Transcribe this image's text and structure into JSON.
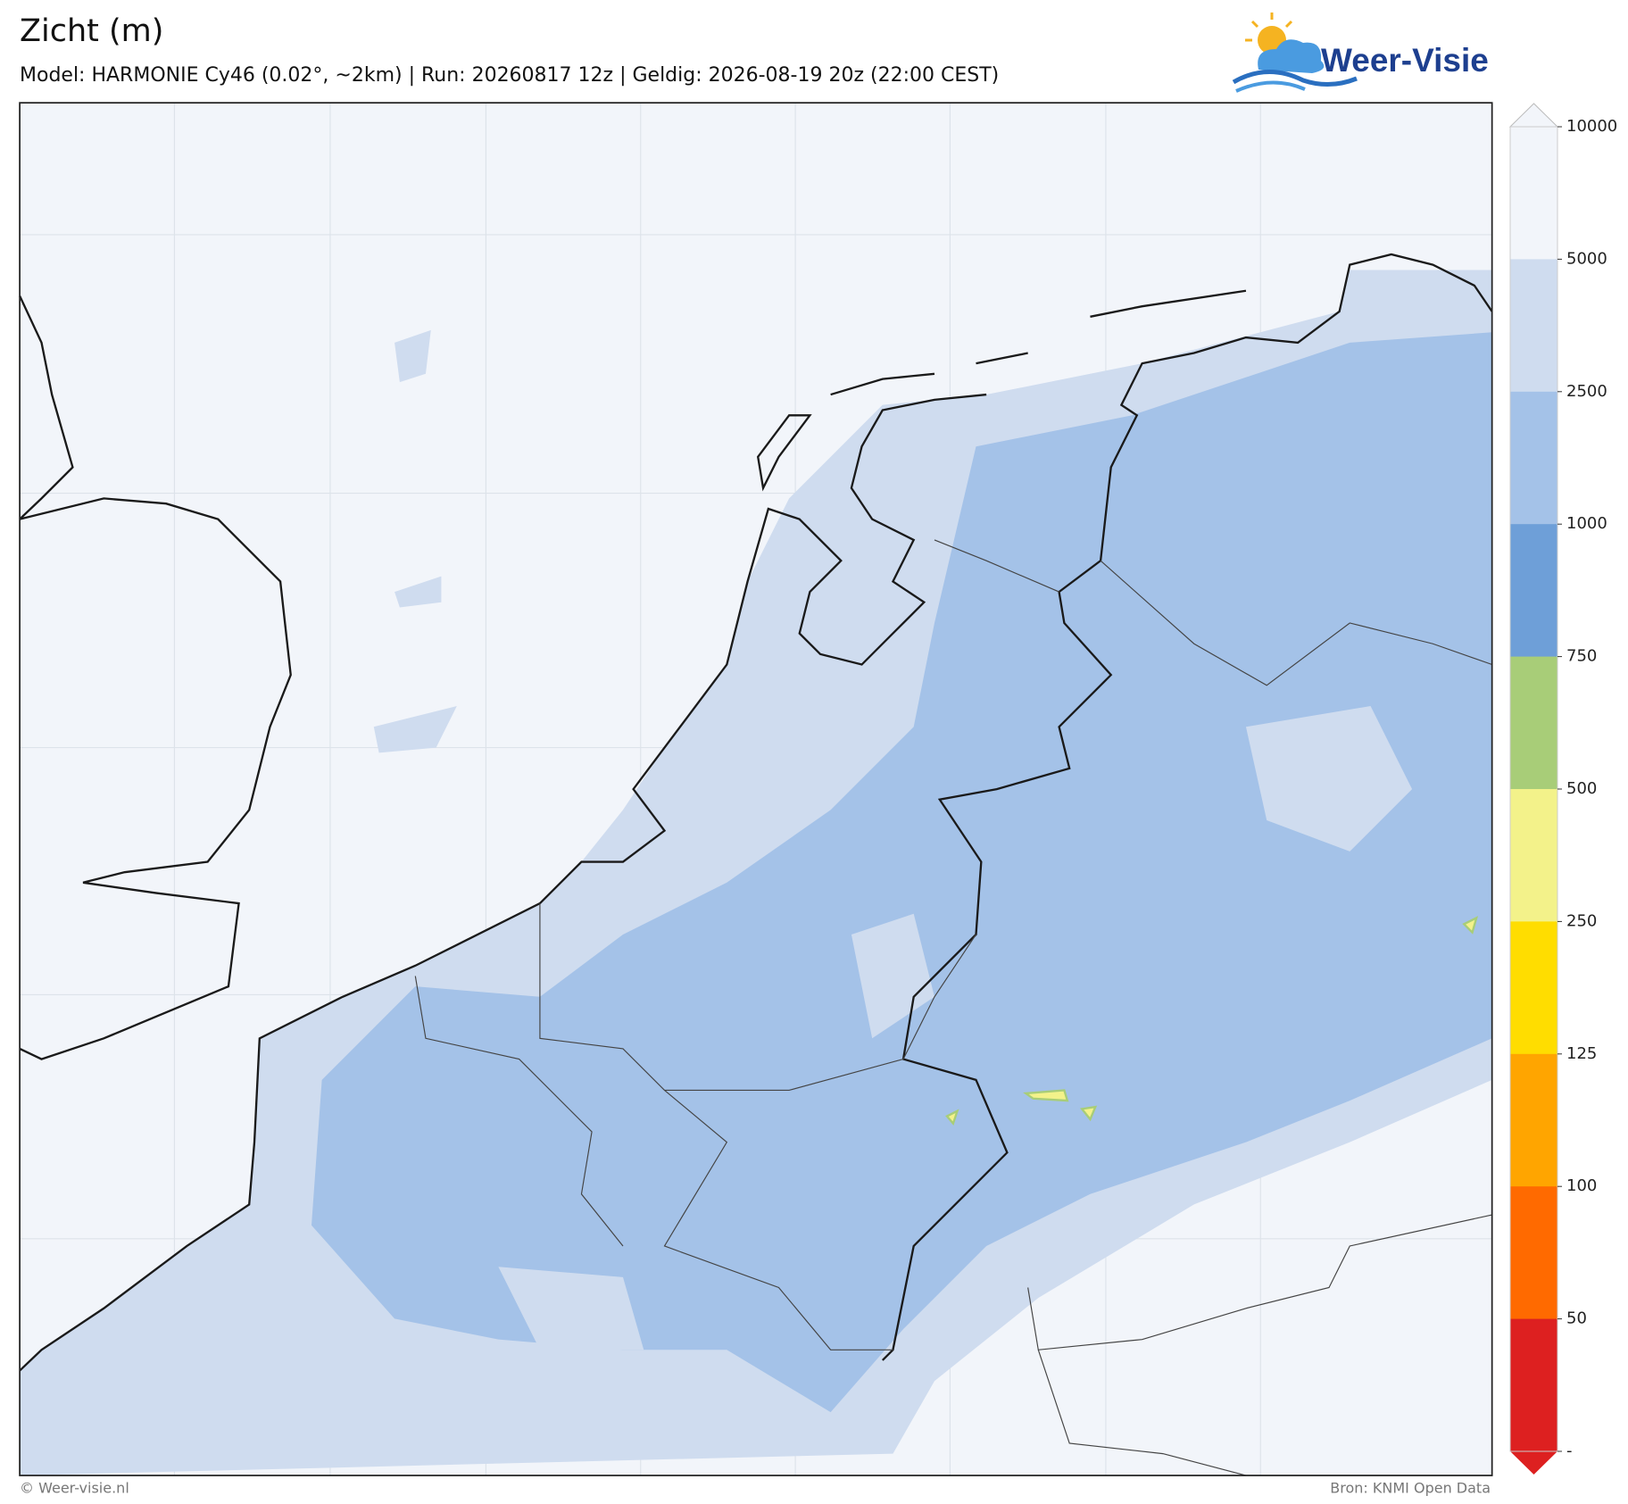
{
  "header": {
    "title": "Zicht (m)",
    "subtitle": "Model: HARMONIE Cy46 (0.02°, ~2km)  |  Run: 20260817 12z  |  Geldig: 2026-08-19 20z (22:00 CEST)"
  },
  "logo": {
    "text": "Weer-Visie"
  },
  "legend": {
    "labels": [
      "10000",
      "5000",
      "2500",
      "1000",
      "750",
      "500",
      "250",
      "125",
      "100",
      "50",
      "-"
    ],
    "colors": [
      "#f2f5fa",
      "#cfdcef",
      "#a4c2e8",
      "#6e9fd8",
      "#a8cd78",
      "#f3f28a",
      "#ffdd00",
      "#ffa500",
      "#ff6a00",
      "#dd2020"
    ]
  },
  "footer": {
    "left": "© Weer-visie.nl",
    "right": "Bron: KNMI Open Data"
  }
}
